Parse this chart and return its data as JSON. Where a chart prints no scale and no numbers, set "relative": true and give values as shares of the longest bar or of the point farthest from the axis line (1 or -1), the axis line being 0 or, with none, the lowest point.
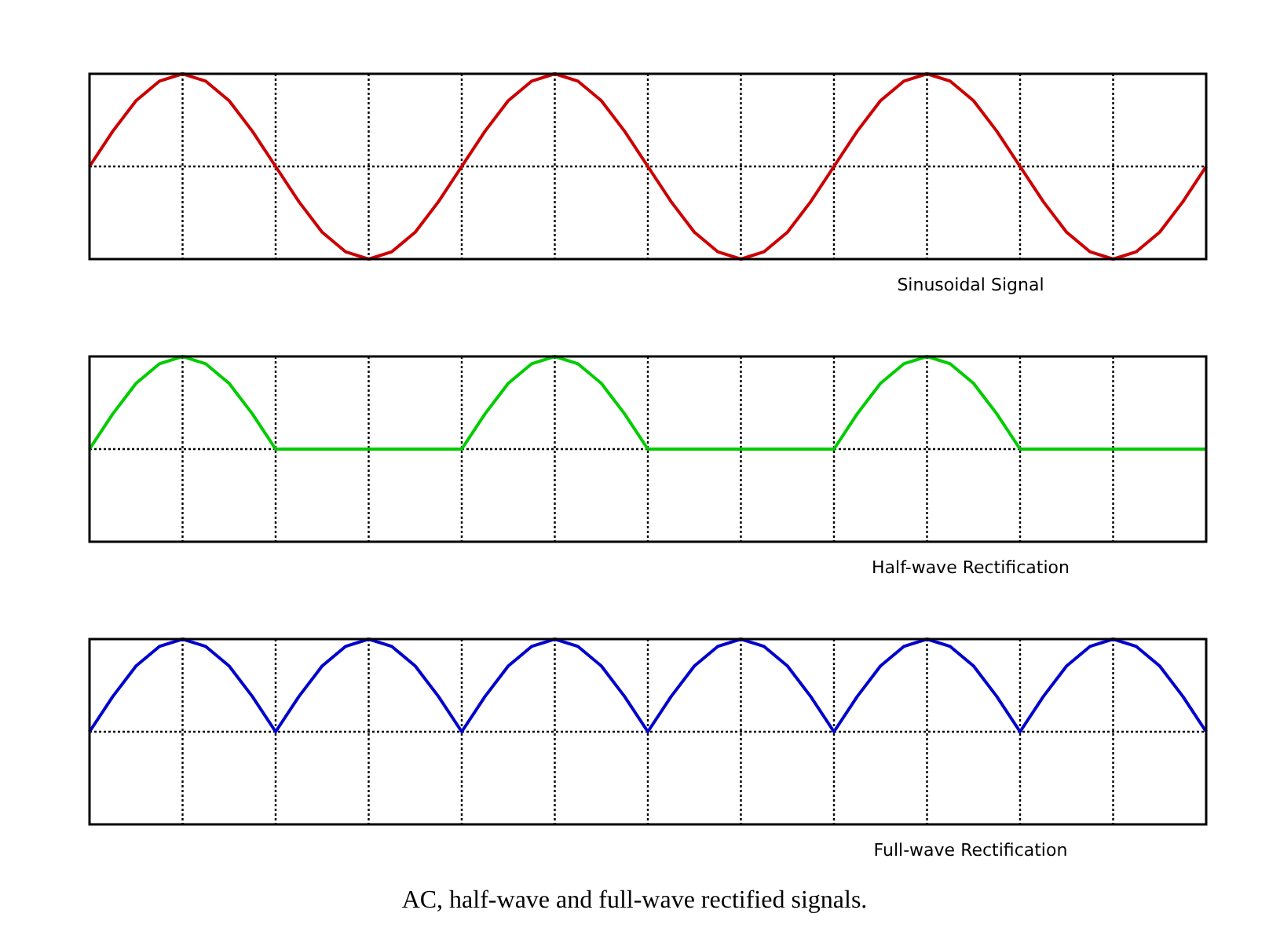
{
  "chart_data": [
    {
      "type": "line",
      "title": "Sinusoidal Signal",
      "relative": true,
      "grid": true,
      "categories": [
        null,
        null,
        null,
        null,
        null,
        null,
        null,
        null,
        null,
        null,
        null,
        null,
        null,
        null,
        null,
        null,
        null,
        null,
        null,
        null,
        null,
        null,
        null,
        null,
        null,
        null,
        null,
        null,
        null,
        null,
        null,
        null,
        null,
        null,
        null,
        null,
        null,
        null,
        null,
        null,
        null,
        null,
        null,
        null,
        null,
        null,
        null,
        null,
        null
      ],
      "series": [
        {
          "color": "#cc0000",
          "values": [
            0,
            0.38,
            0.71,
            0.92,
            1,
            0.92,
            0.71,
            0.38,
            0,
            -0.38,
            -0.71,
            -0.92,
            -1,
            -0.92,
            -0.71,
            -0.38,
            0,
            0.38,
            0.71,
            0.92,
            1,
            0.92,
            0.71,
            0.38,
            0,
            -0.38,
            -0.71,
            -0.92,
            -1,
            -0.92,
            -0.71,
            -0.38,
            0,
            0.38,
            0.71,
            0.92,
            1,
            0.92,
            0.71,
            0.38,
            0,
            -0.38,
            -0.71,
            -0.92,
            -1,
            -0.92,
            -0.71,
            -0.38,
            0
          ]
        }
      ]
    },
    {
      "type": "line",
      "title": "Half-wave Rectification",
      "relative": true,
      "grid": true,
      "categories": [
        null,
        null,
        null,
        null,
        null,
        null,
        null,
        null,
        null,
        null,
        null,
        null,
        null,
        null,
        null,
        null,
        null,
        null,
        null,
        null,
        null,
        null,
        null,
        null,
        null,
        null,
        null,
        null,
        null,
        null,
        null,
        null,
        null,
        null,
        null,
        null,
        null,
        null,
        null,
        null,
        null,
        null,
        null,
        null,
        null,
        null,
        null,
        null,
        null
      ],
      "series": [
        {
          "color": "#00cc00",
          "values": [
            0,
            0.38,
            0.71,
            0.92,
            1,
            0.92,
            0.71,
            0.38,
            0,
            0,
            0,
            0,
            0,
            0,
            0,
            0,
            0,
            0.38,
            0.71,
            0.92,
            1,
            0.92,
            0.71,
            0.38,
            0,
            0,
            0,
            0,
            0,
            0,
            0,
            0,
            0,
            0.38,
            0.71,
            0.92,
            1,
            0.92,
            0.71,
            0.38,
            0,
            0,
            0,
            0,
            0,
            0,
            0,
            0,
            0
          ]
        }
      ]
    },
    {
      "type": "line",
      "title": "Full-wave Rectification",
      "relative": true,
      "grid": true,
      "annotations": [
        "AC, half-wave and full-wave rectified signals."
      ],
      "categories": [
        null,
        null,
        null,
        null,
        null,
        null,
        null,
        null,
        null,
        null,
        null,
        null,
        null,
        null,
        null,
        null,
        null,
        null,
        null,
        null,
        null,
        null,
        null,
        null,
        null,
        null,
        null,
        null,
        null,
        null,
        null,
        null,
        null,
        null,
        null,
        null,
        null,
        null,
        null,
        null,
        null,
        null,
        null,
        null,
        null,
        null,
        null,
        null,
        null
      ],
      "series": [
        {
          "color": "#0000cc",
          "values": [
            0,
            0.38,
            0.71,
            0.92,
            1,
            0.92,
            0.71,
            0.38,
            0,
            0.38,
            0.71,
            0.92,
            1,
            0.92,
            0.71,
            0.38,
            0,
            0.38,
            0.71,
            0.92,
            1,
            0.92,
            0.71,
            0.38,
            0,
            0.38,
            0.71,
            0.92,
            1,
            0.92,
            0.71,
            0.38,
            0,
            0.38,
            0.71,
            0.92,
            1,
            0.92,
            0.71,
            0.38,
            0,
            0.38,
            0.71,
            0.92,
            1,
            0.92,
            0.71,
            0.38,
            0
          ]
        }
      ]
    }
  ]
}
